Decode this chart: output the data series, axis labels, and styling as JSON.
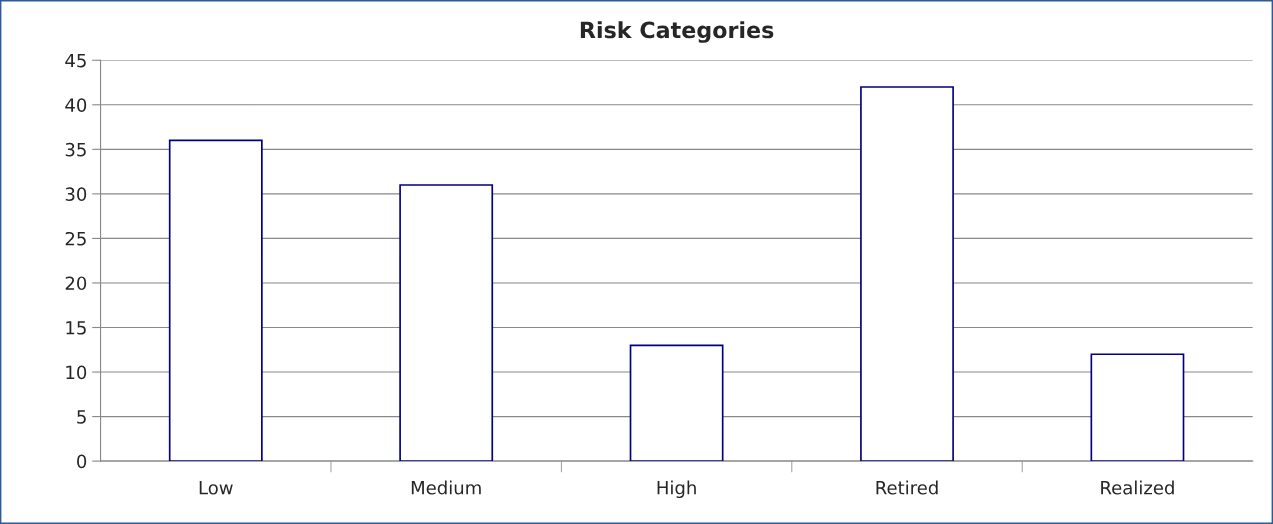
{
  "chart_data": {
    "type": "bar",
    "title": "Risk Categories",
    "categories": [
      "Low",
      "Medium",
      "High",
      "Retired",
      "Realized"
    ],
    "values": [
      36,
      31,
      13,
      42,
      12
    ],
    "color": "#ffffff",
    "ylim": [
      0,
      45
    ],
    "yticks": [
      0,
      5,
      10,
      15,
      20,
      25,
      30,
      35,
      40,
      45
    ],
    "grid": "y"
  }
}
